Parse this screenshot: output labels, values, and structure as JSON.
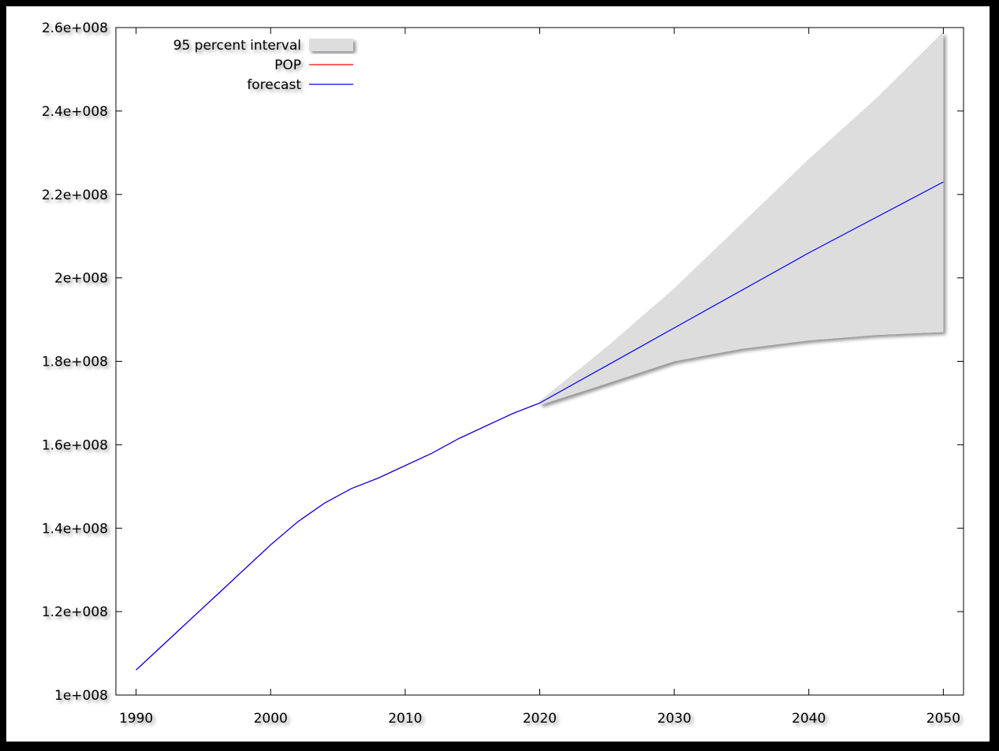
{
  "chart_data": {
    "type": "line",
    "title": "",
    "xlabel": "",
    "ylabel": "",
    "xlim": [
      1988.5,
      2051.5
    ],
    "ylim": [
      100000000,
      260000000
    ],
    "x_ticks": [
      1990,
      2000,
      2010,
      2020,
      2030,
      2040,
      2050
    ],
    "x_tick_labels": [
      "1990",
      "2000",
      "2010",
      "2020",
      "2030",
      "2040",
      "2050"
    ],
    "y_ticks": [
      100000000,
      120000000,
      140000000,
      160000000,
      180000000,
      200000000,
      220000000,
      240000000,
      260000000
    ],
    "y_tick_labels": [
      "1e+008",
      "1.2e+008",
      "1.4e+008",
      "1.6e+008",
      "1.8e+008",
      "2e+008",
      "2.2e+008",
      "2.4e+008",
      "2.6e+008"
    ],
    "grid": false,
    "legend_position": "top-left",
    "legend": [
      "95 percent interval",
      "POP",
      "forecast"
    ],
    "series": [
      {
        "name": "POP",
        "color": "#ff0000",
        "x": [
          1990,
          1992,
          1994,
          1996,
          1998,
          2000,
          2002,
          2004,
          2006,
          2008,
          2010,
          2012,
          2014,
          2016,
          2018,
          2020
        ],
        "values": [
          106000000,
          112000000,
          118000000,
          124000000,
          130000000,
          136000000,
          141500000,
          146000000,
          149500000,
          152000000,
          155000000,
          158000000,
          161500000,
          164500000,
          167500000,
          170000000
        ]
      },
      {
        "name": "forecast",
        "color": "#0000ff",
        "x": [
          1990,
          1992,
          1994,
          1996,
          1998,
          2000,
          2002,
          2004,
          2006,
          2008,
          2010,
          2012,
          2014,
          2016,
          2018,
          2020,
          2025,
          2030,
          2035,
          2040,
          2045,
          2050
        ],
        "values": [
          106000000,
          112000000,
          118000000,
          124000000,
          130000000,
          136000000,
          141500000,
          146000000,
          149500000,
          152000000,
          155000000,
          158000000,
          161500000,
          164500000,
          167500000,
          170000000,
          179000000,
          188000000,
          197000000,
          206000000,
          214500000,
          223000000
        ]
      }
    ],
    "interval": {
      "name": "95 percent interval",
      "color": "#dddddd",
      "x": [
        2020,
        2025,
        2030,
        2035,
        2040,
        2045,
        2050
      ],
      "upper": [
        170500000,
        183500000,
        197500000,
        213000000,
        228500000,
        243000000,
        259000000
      ],
      "lower": [
        169500000,
        174700000,
        180000000,
        183000000,
        185000000,
        186300000,
        187000000
      ]
    }
  }
}
